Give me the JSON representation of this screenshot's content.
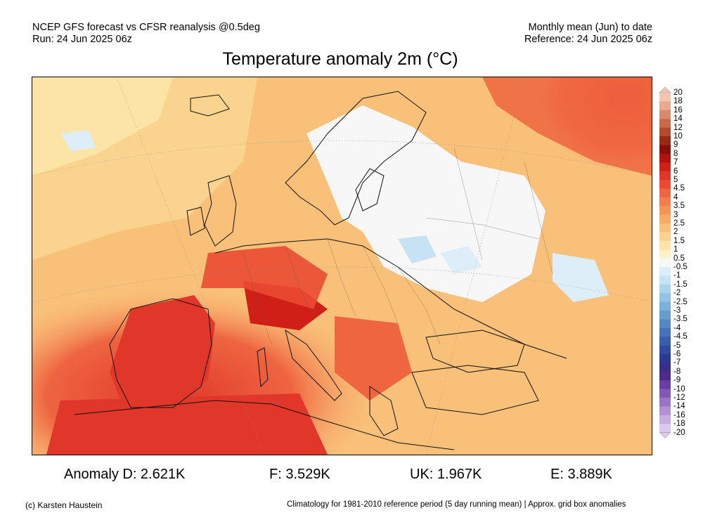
{
  "header": {
    "line1_left": "NCEP GFS forecast vs CFSR reanalysis @0.5deg",
    "line2_left": "Run: 24 Jun 2025 06z",
    "line1_right": "Monthly mean (Jun) to date",
    "line2_right": "Reference: 24 Jun 2025 06z"
  },
  "title": "Temperature anomaly 2m (°C)",
  "colorbar": {
    "labels": [
      "20",
      "18",
      "16",
      "14",
      "12",
      "10",
      "9",
      "8",
      "7",
      "6",
      "5",
      "4.5",
      "4",
      "3.5",
      "3",
      "2.5",
      "2",
      "1.5",
      "1",
      "0.5",
      "-0.5",
      "-1",
      "-1.5",
      "-2",
      "-2.5",
      "-3",
      "-3.5",
      "-4",
      "-4.5",
      "-5",
      "-6",
      "-7",
      "-8",
      "-9",
      "-10",
      "-12",
      "-14",
      "-16",
      "-18",
      "-20"
    ],
    "colors": [
      "#f3c4ae",
      "#e9a98e",
      "#d98a6c",
      "#c96b4b",
      "#b24a2b",
      "#9b2a12",
      "#8a0f0a",
      "#b3120f",
      "#cf1f17",
      "#e0372a",
      "#ea4a32",
      "#ef6540",
      "#f27c4c",
      "#f59459",
      "#f7ab68",
      "#f9c07a",
      "#fad48f",
      "#fbe4a6",
      "#fdf1c8",
      "#f7f7f7",
      "#deeef8",
      "#c7e2f2",
      "#acd3ec",
      "#92c3e4",
      "#7ab1da",
      "#659dcf",
      "#5388c3",
      "#4474b7",
      "#3860a9",
      "#2f4c9c",
      "#2b3a8e",
      "#3a2f88",
      "#4e2a8a",
      "#6a3fa3",
      "#8259b5",
      "#9a74c6",
      "#b291d5",
      "#c7ade2",
      "#dac9ee"
    ]
  },
  "stats": [
    {
      "label": "Anomaly D: 2.621K"
    },
    {
      "label": "F: 3.529K"
    },
    {
      "label": "UK: 1.967K"
    },
    {
      "label": "E: 3.889K"
    }
  ],
  "footer": {
    "left": "(c) Karsten Haustein",
    "right": "Climatology for 1981-2010 reference period (5 day running mean) | Approx. grid box anomalies"
  }
}
